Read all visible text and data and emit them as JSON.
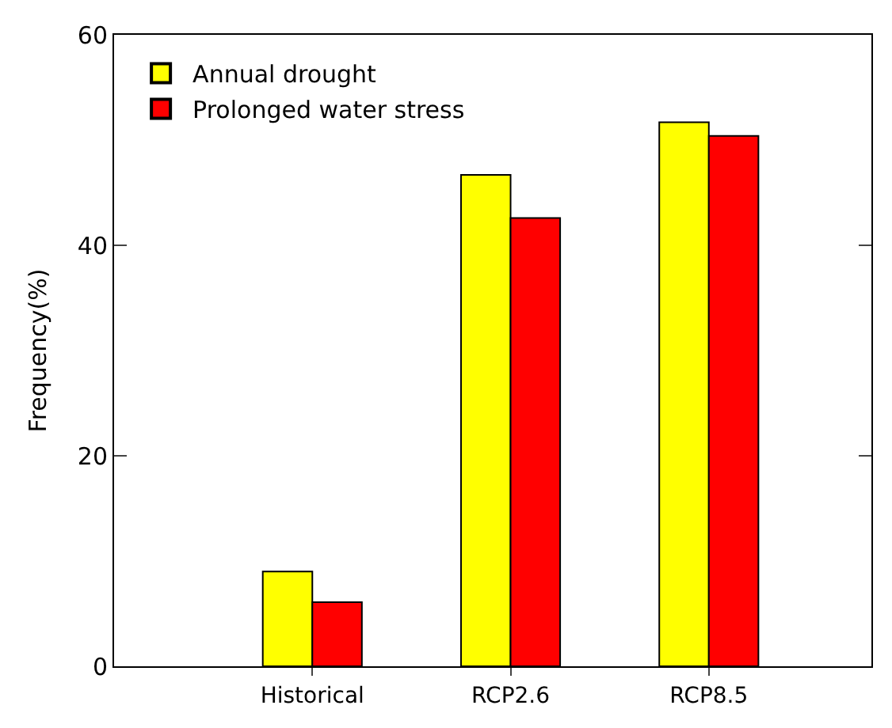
{
  "chart_data": {
    "type": "bar",
    "ylabel": "Frequency(%)",
    "categories": [
      "Historical",
      "RCP2.6",
      "RCP8.5"
    ],
    "series": [
      {
        "name": "Annual drought",
        "color": "#ffff00",
        "values": [
          9.0,
          46.7,
          51.7
        ]
      },
      {
        "name": "Prolonged water stress",
        "color": "#ff0000",
        "values": [
          6.1,
          42.6,
          50.4
        ]
      }
    ],
    "ylim": [
      0,
      60
    ],
    "yticks": [
      0,
      20,
      40,
      60
    ],
    "legend": "top left"
  }
}
